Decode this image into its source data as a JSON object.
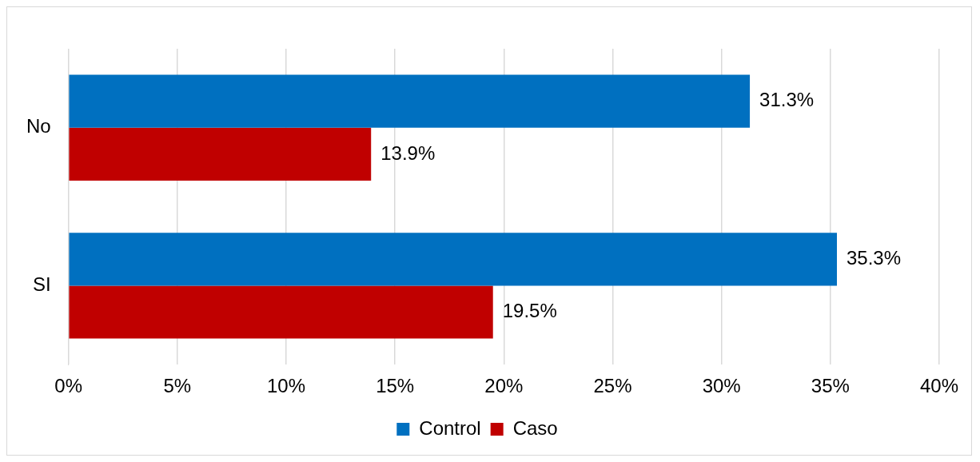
{
  "chart_data": {
    "type": "bar",
    "orientation": "horizontal",
    "categories": [
      "No",
      "SI"
    ],
    "series": [
      {
        "name": "Control",
        "color": "#0070c0",
        "values": [
          31.3,
          35.3
        ],
        "value_labels": [
          "31.3%",
          "35.3%"
        ]
      },
      {
        "name": "Caso",
        "color": "#c00000",
        "values": [
          13.9,
          19.5
        ],
        "value_labels": [
          "13.9%",
          "19.5%"
        ]
      }
    ],
    "xlim": [
      0,
      40
    ],
    "xticks": [
      {
        "value": 0,
        "label": "0%"
      },
      {
        "value": 5,
        "label": "5%"
      },
      {
        "value": 10,
        "label": "10%"
      },
      {
        "value": 15,
        "label": "15%"
      },
      {
        "value": 20,
        "label": "20%"
      },
      {
        "value": 25,
        "label": "25%"
      },
      {
        "value": 30,
        "label": "30%"
      },
      {
        "value": 35,
        "label": "35%"
      },
      {
        "value": 40,
        "label": "40%"
      }
    ],
    "grid": "x",
    "legend": "bottom"
  }
}
